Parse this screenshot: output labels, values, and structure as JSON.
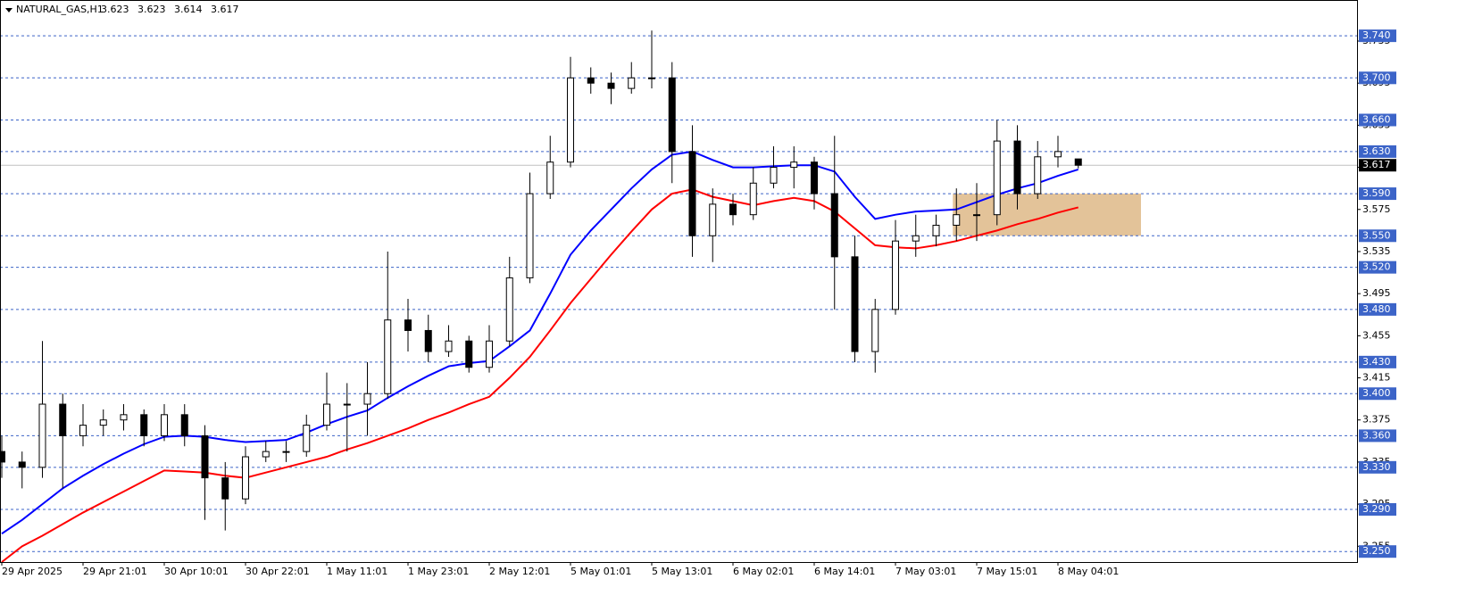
{
  "chart_data": {
    "type": "candlestick",
    "symbol": "NATURAL_GAS,H1",
    "categories": [
      "29 Apr 2025",
      null,
      null,
      null,
      "29 Apr 21:01",
      null,
      null,
      null,
      "30 Apr 10:01",
      null,
      null,
      null,
      "30 Apr 22:01",
      null,
      null,
      null,
      "1 May 11:01",
      null,
      null,
      null,
      "1 May 23:01",
      null,
      null,
      null,
      "2 May 12:01",
      null,
      null,
      null,
      "5 May 01:01",
      null,
      null,
      null,
      "5 May 13:01",
      null,
      null,
      null,
      "6 May 02:01",
      null,
      null,
      null,
      "6 May 14:01",
      null,
      null,
      null,
      "7 May 03:01",
      null,
      null,
      null,
      "7 May 15:01",
      null,
      null,
      null,
      "8 May 04:01",
      null
    ],
    "open": [
      3.345,
      3.335,
      3.33,
      3.39,
      3.36,
      3.37,
      3.375,
      3.38,
      3.36,
      3.38,
      3.36,
      3.32,
      3.3,
      3.34,
      3.345,
      3.345,
      3.37,
      3.39,
      3.39,
      3.4,
      3.47,
      3.46,
      3.44,
      3.45,
      3.425,
      3.45,
      3.51,
      3.59,
      3.62,
      3.7,
      3.695,
      3.69,
      3.7,
      3.7,
      3.63,
      3.55,
      3.58,
      3.57,
      3.6,
      3.615,
      3.62,
      3.59,
      3.53,
      3.44,
      3.48,
      3.545,
      3.55,
      3.56,
      3.57,
      3.57,
      3.64,
      3.59,
      3.625,
      3.623
    ],
    "high": [
      3.36,
      3.345,
      3.45,
      3.4,
      3.39,
      3.385,
      3.39,
      3.385,
      3.39,
      3.39,
      3.37,
      3.335,
      3.35,
      3.355,
      3.355,
      3.38,
      3.42,
      3.41,
      3.43,
      3.535,
      3.49,
      3.475,
      3.465,
      3.455,
      3.465,
      3.53,
      3.61,
      3.645,
      3.72,
      3.71,
      3.705,
      3.715,
      3.745,
      3.715,
      3.655,
      3.595,
      3.59,
      3.615,
      3.635,
      3.635,
      3.625,
      3.645,
      3.55,
      3.49,
      3.565,
      3.57,
      3.57,
      3.595,
      3.6,
      3.66,
      3.655,
      3.64,
      3.645,
      3.623
    ],
    "low": [
      3.32,
      3.31,
      3.32,
      3.31,
      3.35,
      3.36,
      3.365,
      3.35,
      3.355,
      3.35,
      3.28,
      3.27,
      3.295,
      3.335,
      3.335,
      3.34,
      3.365,
      3.345,
      3.36,
      3.395,
      3.44,
      3.43,
      3.435,
      3.42,
      3.42,
      3.445,
      3.505,
      3.585,
      3.615,
      3.685,
      3.675,
      3.685,
      3.69,
      3.6,
      3.53,
      3.525,
      3.56,
      3.565,
      3.595,
      3.595,
      3.575,
      3.48,
      3.43,
      3.42,
      3.475,
      3.53,
      3.54,
      3.545,
      3.545,
      3.56,
      3.575,
      3.585,
      3.615,
      3.614
    ],
    "close": [
      3.335,
      3.33,
      3.39,
      3.36,
      3.37,
      3.375,
      3.38,
      3.36,
      3.38,
      3.36,
      3.32,
      3.3,
      3.34,
      3.345,
      3.345,
      3.37,
      3.39,
      3.39,
      3.4,
      3.47,
      3.46,
      3.44,
      3.45,
      3.425,
      3.45,
      3.51,
      3.59,
      3.62,
      3.7,
      3.695,
      3.69,
      3.7,
      3.7,
      3.63,
      3.55,
      3.58,
      3.57,
      3.6,
      3.615,
      3.62,
      3.59,
      3.53,
      3.44,
      3.48,
      3.545,
      3.55,
      3.56,
      3.57,
      3.57,
      3.64,
      3.59,
      3.625,
      3.63,
      3.617
    ],
    "moving_averages": [
      {
        "color": "#0000ff",
        "values": [
          3.267,
          3.28,
          3.295,
          3.31,
          3.322,
          3.333,
          3.343,
          3.352,
          3.359,
          3.36,
          3.359,
          3.356,
          3.354,
          3.355,
          3.356,
          3.363,
          3.371,
          3.378,
          3.384,
          3.396,
          3.407,
          3.417,
          3.426,
          3.429,
          3.431,
          3.445,
          3.46,
          3.495,
          3.532,
          3.555,
          3.575,
          3.595,
          3.613,
          3.627,
          3.63,
          3.622,
          3.615,
          3.615,
          3.616,
          3.617,
          3.617,
          3.611,
          3.587,
          3.566,
          3.57,
          3.573,
          3.574,
          3.575,
          3.582,
          3.589,
          3.595,
          3.6,
          3.607,
          3.613
        ]
      },
      {
        "color": "#ff0000",
        "values": [
          3.24,
          3.255,
          3.265,
          3.276,
          3.287,
          3.297,
          3.307,
          3.317,
          3.327,
          3.326,
          3.325,
          3.322,
          3.32,
          3.325,
          3.33,
          3.335,
          3.34,
          3.347,
          3.353,
          3.36,
          3.367,
          3.375,
          3.382,
          3.39,
          3.397,
          3.415,
          3.435,
          3.46,
          3.486,
          3.509,
          3.532,
          3.554,
          3.575,
          3.59,
          3.594,
          3.587,
          3.583,
          3.579,
          3.583,
          3.586,
          3.583,
          3.573,
          3.557,
          3.541,
          3.539,
          3.538,
          3.541,
          3.545,
          3.55,
          3.555,
          3.561,
          3.566,
          3.572,
          3.577
        ]
      }
    ],
    "zone": {
      "low": 3.55,
      "high": 3.59,
      "color": "#deb887"
    },
    "ylim": [
      3.24,
      3.774
    ],
    "yticks": [
      3.255,
      3.295,
      3.335,
      3.375,
      3.415,
      3.455,
      3.495,
      3.535,
      3.575,
      3.615,
      3.655,
      3.695,
      3.735
    ],
    "levels": [
      {
        "value": 3.74,
        "label": "3.740"
      },
      {
        "value": 3.7,
        "label": "3.700"
      },
      {
        "value": 3.66,
        "label": "3.660"
      },
      {
        "value": 3.63,
        "label": "3.630"
      },
      {
        "value": 3.59,
        "label": "3.590"
      },
      {
        "value": 3.55,
        "label": "3.550"
      },
      {
        "value": 3.52,
        "label": "3.520"
      },
      {
        "value": 3.48,
        "label": "3.480"
      },
      {
        "value": 3.43,
        "label": "3.430"
      },
      {
        "value": 3.4,
        "label": "3.400"
      },
      {
        "value": 3.36,
        "label": "3.360"
      },
      {
        "value": 3.33,
        "label": "3.330"
      },
      {
        "value": 3.29,
        "label": "3.290"
      },
      {
        "value": 3.25,
        "label": "3.250"
      }
    ],
    "level_color": "#3c64c8",
    "current_price": 3.617
  }
}
